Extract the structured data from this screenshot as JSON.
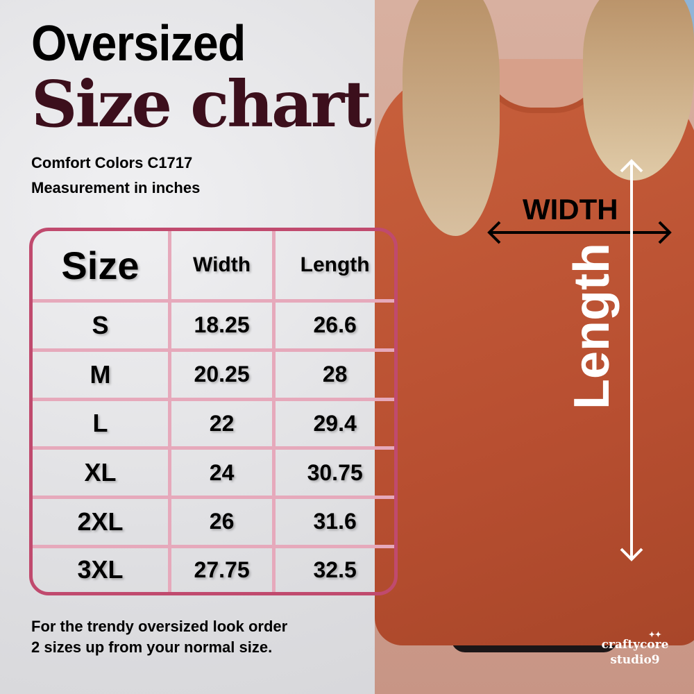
{
  "title_line1": "Oversized",
  "title_line2": "Size chart",
  "subtitle_line1": "Comfort Colors C1717",
  "subtitle_line2": "Measurement in inches",
  "table": {
    "headers": [
      "Size",
      "Width",
      "Length"
    ],
    "rows": [
      [
        "S",
        "18.25",
        "26.6"
      ],
      [
        "M",
        "20.25",
        "28"
      ],
      [
        "L",
        "22",
        "29.4"
      ],
      [
        "XL",
        "24",
        "30.75"
      ],
      [
        "2XL",
        "26",
        "31.6"
      ],
      [
        "3XL",
        "27.75",
        "32.5"
      ]
    ]
  },
  "footer_line1": "For the trendy oversized  look order",
  "footer_line2": "2 sizes up from your normal size.",
  "diagram": {
    "width_label": "WIDTH",
    "length_label": "Length"
  },
  "logo": {
    "line1": "craftycore",
    "line2": "studio9"
  },
  "colors": {
    "title_accent": "#3c0f1c",
    "table_border": "#c04a6e",
    "grid": "#e6a9bb",
    "shirt": "#b84f31"
  }
}
